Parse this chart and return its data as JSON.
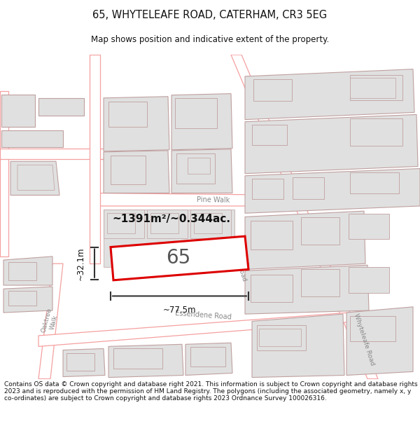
{
  "title_line1": "65, WHYTELEAFE ROAD, CATERHAM, CR3 5EG",
  "title_line2": "Map shows position and indicative extent of the property.",
  "footer_text": "Contains OS data © Crown copyright and database right 2021. This information is subject to Crown copyright and database rights 2023 and is reproduced with the permission of HM Land Registry. The polygons (including the associated geometry, namely x, y co-ordinates) are subject to Crown copyright and database rights 2023 Ordnance Survey 100026316.",
  "road_color": "#f5a0a0",
  "road_fill": "#ffffff",
  "building_fill": "#e0e0e0",
  "building_outline": "#c0a0a0",
  "highlight_fill": "#ffffff",
  "highlight_outline": "#dd0000",
  "dim_color": "#222222",
  "label_gray": "#888888",
  "area_text_color": "#111111",
  "prop_num_color": "#555555",
  "title_color": "#111111",
  "footer_color": "#111111",
  "map_bg": "#f8f8f8"
}
